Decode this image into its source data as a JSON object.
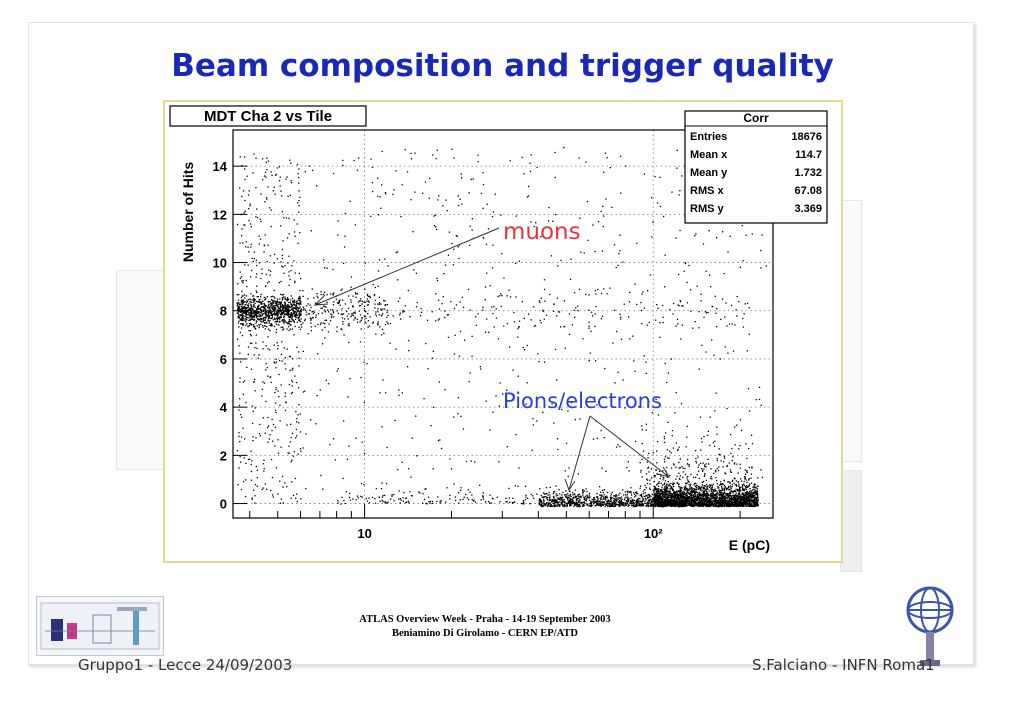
{
  "slide": {
    "title": "Beam composition and trigger quality",
    "footer_line1": "ATLAS Overview Week - Praha -  14-19  September 2003",
    "footer_line2": "Beniamino Di Girolamo  -  CERN EP/ATD",
    "footer_left": "Gruppo1 - Lecce 24/09/2003",
    "footer_right": "S.Falciano - INFN Roma1"
  },
  "chart_data": {
    "type": "scatter",
    "title": "MDT Cha 2 vs Tile",
    "xlabel": "E (pC)",
    "ylabel": "Number of Hits",
    "xscale": "log",
    "xlim": [
      3.5,
      260
    ],
    "ylim": [
      -0.6,
      15.5
    ],
    "x_ticks": [
      {
        "value": 10,
        "label": "10"
      },
      {
        "value": 100,
        "label": "10²"
      }
    ],
    "y_ticks": [
      0,
      2,
      4,
      6,
      8,
      10,
      12,
      14
    ],
    "grid": true,
    "stats_box": {
      "title": "Corr",
      "rows": [
        {
          "label": "Entries",
          "value": "18676"
        },
        {
          "label": "Mean x",
          "value": "114.7"
        },
        {
          "label": "Mean y",
          "value": "1.732"
        },
        {
          "label": "RMS x",
          "value": "67.08"
        },
        {
          "label": "RMS y",
          "value": "3.369"
        }
      ]
    },
    "annotations": [
      {
        "text": "muons",
        "color": "#e8343a",
        "points_to": [
          [
            5.9,
            8.0
          ]
        ]
      },
      {
        "text": "Pions/electrons",
        "color": "#2a3ee0",
        "points_to": [
          [
            50,
            0.5
          ],
          [
            150,
            1.0
          ]
        ]
      }
    ],
    "populations": [
      {
        "name": "muon band",
        "x_range": [
          3.6,
          6
        ],
        "y_center": 8,
        "y_sigma": 0.3,
        "density": "high"
      },
      {
        "name": "pion/electron band",
        "x_range": [
          40,
          230
        ],
        "y_center": 0,
        "y_sigma": 0.3,
        "density": "very high"
      },
      {
        "name": "diffuse background",
        "x_range": [
          3.6,
          250
        ],
        "y_range": [
          0,
          14.8
        ],
        "density": "low"
      }
    ]
  }
}
